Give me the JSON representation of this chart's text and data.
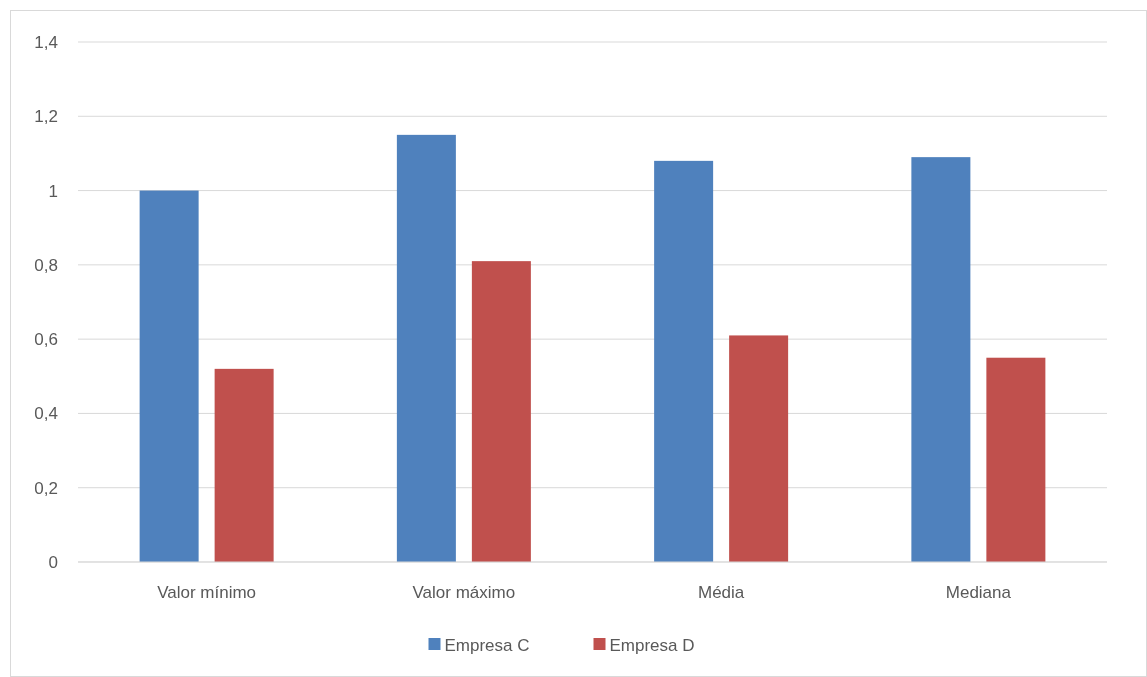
{
  "chart_data": {
    "type": "bar",
    "categories": [
      "Valor mínimo",
      "Valor máximo",
      "Média",
      "Mediana"
    ],
    "series": [
      {
        "name": "Empresa C",
        "color": "#4f81bd",
        "values": [
          1.0,
          1.15,
          1.08,
          1.09
        ]
      },
      {
        "name": "Empresa D",
        "color": "#c0504d",
        "values": [
          0.52,
          0.81,
          0.61,
          0.55
        ]
      }
    ],
    "ylim": [
      0,
      1.4
    ],
    "yticks": [
      0,
      {
        "value": 0.2,
        "label": "0,2"
      },
      {
        "value": 0.4,
        "label": "0,4"
      },
      {
        "value": 0.6,
        "label": "0,6"
      },
      {
        "value": 0.8,
        "label": "0,8"
      },
      1,
      {
        "value": 1.2,
        "label": "1,2"
      },
      {
        "value": 1.4,
        "label": "1,4"
      }
    ],
    "grid": "y",
    "legend": "bottom"
  }
}
